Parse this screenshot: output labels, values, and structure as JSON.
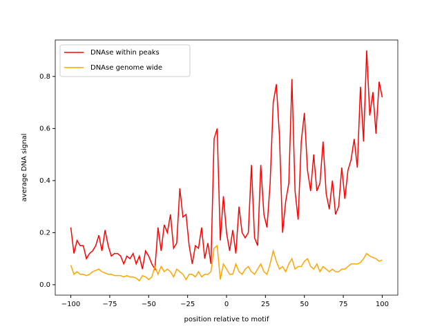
{
  "chart_data": {
    "type": "line",
    "xlabel": "position relative to motif",
    "ylabel": "average DNA signal",
    "x": [
      -100,
      -98,
      -96,
      -94,
      -92,
      -90,
      -88,
      -86,
      -84,
      -82,
      -80,
      -78,
      -76,
      -74,
      -72,
      -70,
      -68,
      -66,
      -64,
      -62,
      -60,
      -58,
      -56,
      -54,
      -52,
      -50,
      -48,
      -46,
      -44,
      -42,
      -40,
      -38,
      -36,
      -34,
      -32,
      -30,
      -28,
      -26,
      -24,
      -22,
      -20,
      -18,
      -16,
      -14,
      -12,
      -10,
      -8,
      -6,
      -4,
      -2,
      0,
      2,
      4,
      6,
      8,
      10,
      12,
      14,
      16,
      18,
      20,
      22,
      24,
      26,
      28,
      30,
      32,
      34,
      36,
      38,
      40,
      42,
      44,
      46,
      48,
      50,
      52,
      54,
      56,
      58,
      60,
      62,
      64,
      66,
      68,
      70,
      72,
      74,
      76,
      78,
      80,
      82,
      84,
      86,
      88,
      90,
      92,
      94,
      96,
      98,
      100
    ],
    "series": [
      {
        "name": "DNAse within peaks",
        "color": "#ff0000",
        "values": [
          0.22,
          0.12,
          0.17,
          0.15,
          0.15,
          0.1,
          0.12,
          0.13,
          0.15,
          0.19,
          0.13,
          0.21,
          0.15,
          0.11,
          0.12,
          0.12,
          0.11,
          0.08,
          0.11,
          0.1,
          0.12,
          0.08,
          0.11,
          0.06,
          0.13,
          0.11,
          0.08,
          0.06,
          0.22,
          0.13,
          0.23,
          0.2,
          0.27,
          0.14,
          0.16,
          0.37,
          0.26,
          0.27,
          0.15,
          0.08,
          0.15,
          0.14,
          0.22,
          0.1,
          0.16,
          0.08,
          0.56,
          0.6,
          0.17,
          0.34,
          0.2,
          0.13,
          0.21,
          0.12,
          0.3,
          0.2,
          0.18,
          0.2,
          0.46,
          0.18,
          0.15,
          0.46,
          0.27,
          0.22,
          0.39,
          0.7,
          0.77,
          0.57,
          0.2,
          0.32,
          0.39,
          0.79,
          0.36,
          0.25,
          0.55,
          0.66,
          0.44,
          0.36,
          0.5,
          0.36,
          0.39,
          0.55,
          0.35,
          0.29,
          0.4,
          0.27,
          0.3,
          0.45,
          0.33,
          0.44,
          0.48,
          0.56,
          0.45,
          0.76,
          0.55,
          0.9,
          0.65,
          0.74,
          0.58,
          0.78,
          0.72
        ]
      },
      {
        "name": "DNAse genome wide",
        "color": "#ffa500",
        "values": [
          0.075,
          0.04,
          0.05,
          0.04,
          0.04,
          0.035,
          0.04,
          0.05,
          0.055,
          0.06,
          0.05,
          0.045,
          0.04,
          0.04,
          0.035,
          0.035,
          0.035,
          0.03,
          0.035,
          0.03,
          0.03,
          0.025,
          0.015,
          0.035,
          0.03,
          0.02,
          0.03,
          0.07,
          0.04,
          0.07,
          0.05,
          0.06,
          0.05,
          0.03,
          0.06,
          0.05,
          0.04,
          0.02,
          0.04,
          0.04,
          0.03,
          0.05,
          0.03,
          0.04,
          0.04,
          0.05,
          0.14,
          0.15,
          0.02,
          0.08,
          0.06,
          0.04,
          0.04,
          0.08,
          0.05,
          0.04,
          0.06,
          0.07,
          0.05,
          0.04,
          0.06,
          0.08,
          0.05,
          0.04,
          0.08,
          0.13,
          0.09,
          0.06,
          0.07,
          0.05,
          0.08,
          0.1,
          0.06,
          0.07,
          0.07,
          0.09,
          0.1,
          0.07,
          0.06,
          0.08,
          0.05,
          0.07,
          0.06,
          0.05,
          0.06,
          0.05,
          0.05,
          0.06,
          0.06,
          0.07,
          0.08,
          0.08,
          0.08,
          0.085,
          0.1,
          0.12,
          0.11,
          0.105,
          0.1,
          0.09,
          0.095
        ]
      }
    ],
    "xlim": [
      -110,
      110
    ],
    "ylim": [
      -0.04,
      0.94
    ],
    "xticks": [
      {
        "value": -100,
        "label": "−100"
      },
      {
        "value": -75,
        "label": "−75"
      },
      {
        "value": -50,
        "label": "−50"
      },
      {
        "value": -25,
        "label": "−25"
      },
      0,
      25,
      50,
      75,
      100
    ],
    "yticks": [
      {
        "value": 0,
        "label": "0.0"
      },
      0.2,
      0.4,
      0.6,
      0.8
    ],
    "legend": "upper left"
  }
}
